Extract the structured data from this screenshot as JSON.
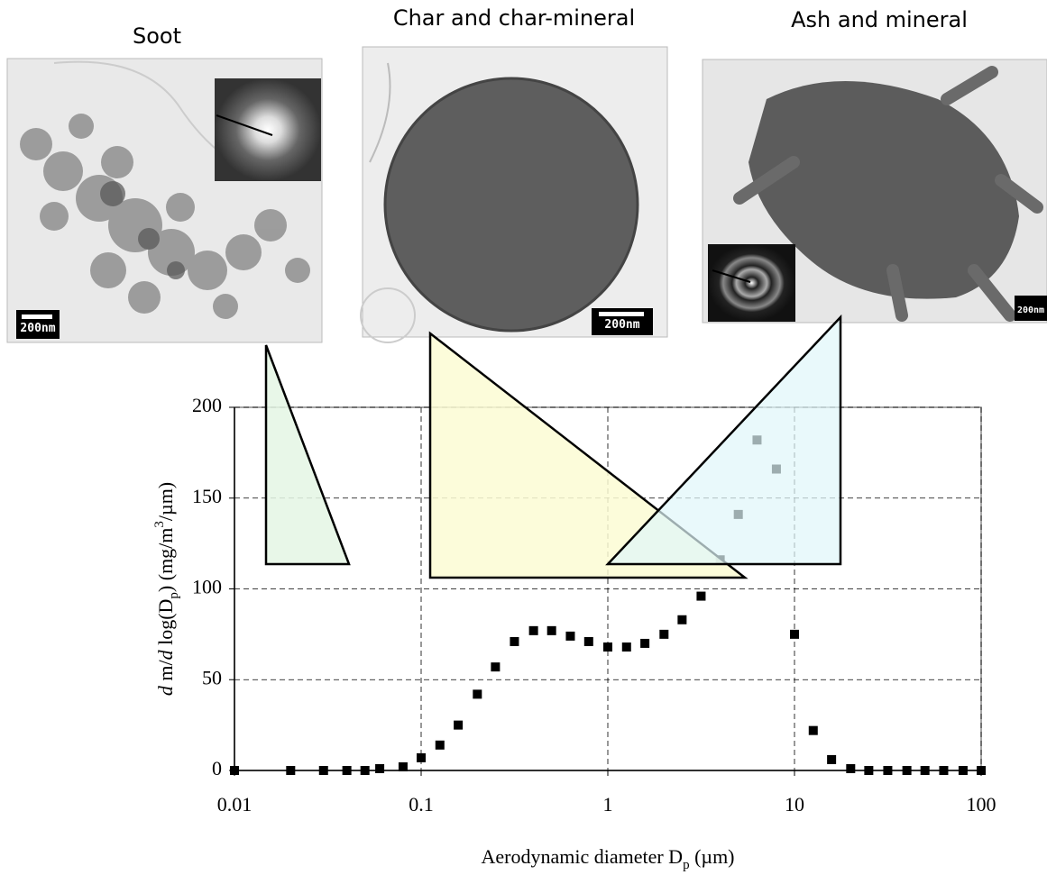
{
  "panels": [
    {
      "title": "Soot",
      "scale_label": "200nm"
    },
    {
      "title": "Char and char-mineral",
      "scale_label": "200nm"
    },
    {
      "title": "Ash and mineral",
      "scale_label": "200nm"
    }
  ],
  "chart_data": {
    "type": "scatter",
    "x_label_parts": [
      "Aerodynamic diameter D",
      "p",
      " (µm)"
    ],
    "y_label_parts": [
      "d",
      " m/",
      "d",
      " log(D",
      "p",
      ") (mg/m",
      "3",
      "/µm)"
    ],
    "x": [
      0.01,
      0.02,
      0.03,
      0.04,
      0.05,
      0.06,
      0.08,
      0.1,
      0.126,
      0.158,
      0.2,
      0.25,
      0.316,
      0.4,
      0.5,
      0.63,
      0.79,
      1.0,
      1.26,
      1.58,
      2.0,
      2.5,
      3.16,
      4.0,
      5.0,
      6.3,
      8.0,
      10.0,
      12.6,
      15.8,
      20,
      25,
      31.6,
      40,
      50,
      63,
      80,
      100
    ],
    "series": [
      {
        "color": "#000000",
        "values": [
          0,
          0,
          0,
          0,
          0,
          1,
          2,
          7,
          14,
          25,
          42,
          57,
          71,
          77,
          77,
          74,
          71,
          68,
          68,
          70,
          75,
          83,
          96,
          116,
          141,
          182,
          166,
          75,
          22,
          6,
          1,
          0,
          0,
          0,
          0,
          0,
          0,
          0
        ]
      }
    ],
    "xscale": "log",
    "xlim": [
      0.01,
      100
    ],
    "xticks": [
      0.01,
      0.1,
      1,
      10,
      100
    ],
    "ylim": [
      0,
      200
    ],
    "yticks": [
      0,
      50,
      100,
      150,
      200
    ],
    "grid": true
  }
}
